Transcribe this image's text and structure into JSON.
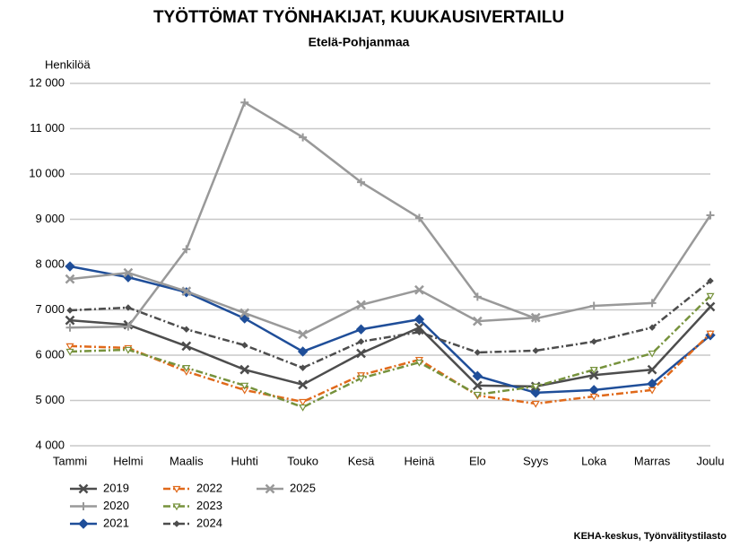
{
  "chart_data": {
    "type": "line",
    "title": "TYÖTTÖMAT TYÖNHAKIJAT, KUUKAUSIVERTAILU",
    "subtitle": "Etelä-Pohjanmaa",
    "y_label": "Henkilöä",
    "source": "KEHA-keskus, Työnvälitystilasto",
    "categories": [
      "Tammi",
      "Helmi",
      "Maalis",
      "Huhti",
      "Touko",
      "Kesä",
      "Heinä",
      "Elo",
      "Syys",
      "Loka",
      "Marras",
      "Joulu"
    ],
    "ylim": [
      4000,
      12000
    ],
    "yticks": [
      {
        "value": 4000,
        "label": "4 000"
      },
      {
        "value": 5000,
        "label": "5 000"
      },
      {
        "value": 6000,
        "label": "6 000"
      },
      {
        "value": 7000,
        "label": "7 000"
      },
      {
        "value": 8000,
        "label": "8 000"
      },
      {
        "value": 9000,
        "label": "9 000"
      },
      {
        "value": 10000,
        "label": "10 000"
      },
      {
        "value": 11000,
        "label": "11 000"
      },
      {
        "value": 12000,
        "label": "12 000"
      }
    ],
    "grid": true,
    "legend": "bottom",
    "series": [
      {
        "name": "2019",
        "color": "#4d4d4d",
        "marker": "x",
        "dash": "solid",
        "values": [
          6770,
          6670,
          6200,
          5680,
          5350,
          6040,
          6610,
          5330,
          5310,
          5560,
          5680,
          7070
        ]
      },
      {
        "name": "2020",
        "color": "#999999",
        "marker": "plus",
        "dash": "solid",
        "values": [
          6610,
          6630,
          8340,
          11580,
          10810,
          9820,
          9030,
          7290,
          6810,
          7090,
          7150,
          9090
        ]
      },
      {
        "name": "2021",
        "color": "#1f4e99",
        "marker": "diamond",
        "dash": "solid",
        "values": [
          7960,
          7720,
          7390,
          6810,
          6080,
          6570,
          6790,
          5540,
          5170,
          5230,
          5370,
          6440
        ]
      },
      {
        "name": "2022",
        "color": "#e0691a",
        "marker": "triangle",
        "dash": "dashdot",
        "values": [
          6200,
          6160,
          5640,
          5230,
          4970,
          5560,
          5900,
          5110,
          4930,
          5090,
          5230,
          6480
        ]
      },
      {
        "name": "2023",
        "color": "#76923c",
        "marker": "triangle",
        "dash": "dashdot",
        "values": [
          6080,
          6120,
          5720,
          5330,
          4850,
          5490,
          5840,
          5130,
          5310,
          5680,
          6040,
          7310
        ]
      },
      {
        "name": "2024",
        "color": "#4d4d4d",
        "marker": "small-diamond",
        "dash": "dashdot",
        "values": [
          6990,
          7050,
          6570,
          6220,
          5720,
          6300,
          6510,
          6060,
          6100,
          6300,
          6610,
          7640
        ]
      },
      {
        "name": "2025",
        "color": "#999999",
        "marker": "x",
        "dash": "solid",
        "values": [
          7680,
          7820,
          7410,
          6930,
          6460,
          7110,
          7440,
          6750,
          6830,
          null,
          null,
          null
        ]
      }
    ]
  }
}
